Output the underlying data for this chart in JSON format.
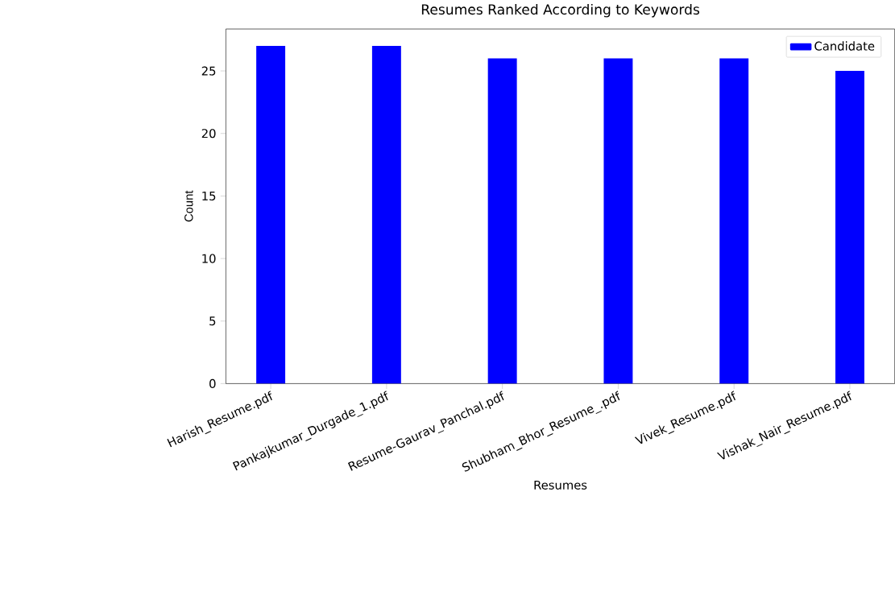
{
  "chart_data": {
    "type": "bar",
    "title": "Resumes Ranked According to Keywords",
    "xlabel": "Resumes",
    "ylabel": "Count",
    "categories": [
      "Harish_Resume.pdf",
      "Pankajkumar_Durgade_1.pdf",
      "Resume-Gaurav_Panchal.pdf",
      "Shubham_Bhor_Resume_.pdf",
      "Vivek_Resume.pdf",
      "Vishak_Nair_Resume.pdf"
    ],
    "series": [
      {
        "name": "Candidate",
        "color": "#0000ff",
        "values": [
          27,
          27,
          26,
          26,
          26,
          25
        ]
      }
    ],
    "ylim": [
      0,
      28.35
    ],
    "yticks": [
      0,
      5,
      10,
      15,
      20,
      25
    ],
    "legend": "top right"
  }
}
